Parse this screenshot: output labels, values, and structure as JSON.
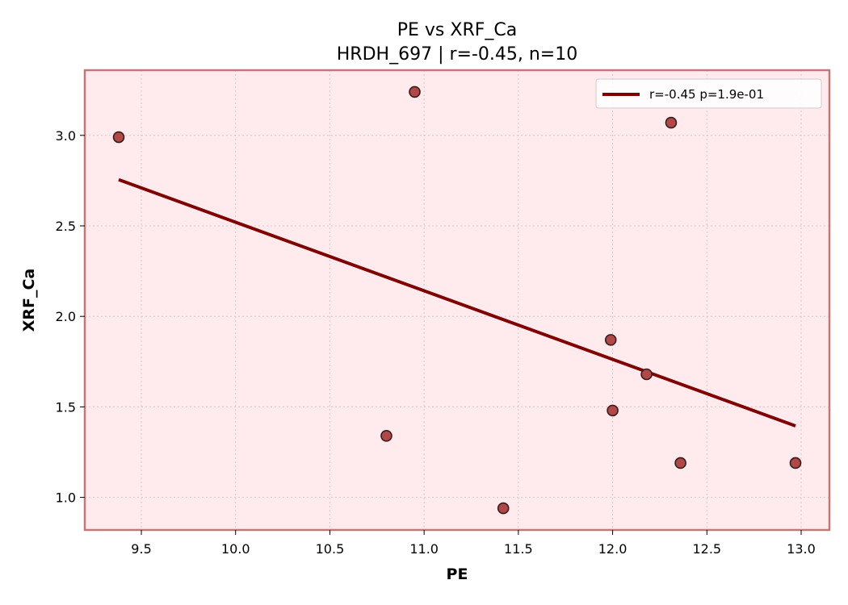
{
  "chart_data": {
    "type": "scatter",
    "title": "PE vs XRF_Ca",
    "subtitle": "HRDH_697 | r=-0.45, n=10",
    "xlabel": "PE",
    "ylabel": "XRF_Ca",
    "xlim": [
      9.2,
      13.15
    ],
    "ylim": [
      0.82,
      3.36
    ],
    "xticks": [
      9.5,
      10.0,
      10.5,
      11.0,
      11.5,
      12.0,
      12.5,
      13.0
    ],
    "xtick_labels": [
      "9.5",
      "10.0",
      "10.5",
      "11.0",
      "11.5",
      "12.0",
      "12.5",
      "13.0"
    ],
    "yticks": [
      1.0,
      1.5,
      2.0,
      2.5,
      3.0
    ],
    "ytick_labels": [
      "1.0",
      "1.5",
      "2.0",
      "2.5",
      "3.0"
    ],
    "grid": true,
    "legend_position": "top-right",
    "points": [
      {
        "x": 9.38,
        "y": 2.99
      },
      {
        "x": 10.8,
        "y": 1.34
      },
      {
        "x": 10.95,
        "y": 3.24
      },
      {
        "x": 11.42,
        "y": 0.94
      },
      {
        "x": 11.99,
        "y": 1.87
      },
      {
        "x": 12.0,
        "y": 1.48
      },
      {
        "x": 12.18,
        "y": 1.68
      },
      {
        "x": 12.31,
        "y": 3.07
      },
      {
        "x": 12.36,
        "y": 1.19
      },
      {
        "x": 12.97,
        "y": 1.19
      }
    ],
    "fit_line": {
      "label": "r=-0.45  p=1.9e-01",
      "start": {
        "x": 9.38,
        "y": 2.755
      },
      "end": {
        "x": 12.97,
        "y": 1.395
      }
    },
    "colors": {
      "background": "#ffebee",
      "frame": "#c27878",
      "point_fill": "#b04848",
      "point_edge": "#3a1a1a",
      "fit_line": "#800000",
      "grid": "#dcc4c6"
    }
  }
}
